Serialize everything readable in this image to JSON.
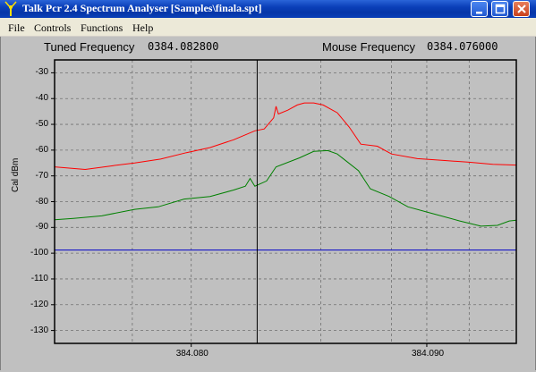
{
  "window": {
    "title": "Talk Pcr 2.4 Spectrum Analyser [Samples\\finala.spt]",
    "titlebar_color": "#0a3fb8",
    "buttons": [
      "minimize-icon",
      "maximize-icon",
      "close-icon"
    ]
  },
  "menu": {
    "items": [
      {
        "label": "File"
      },
      {
        "label": "Controls"
      },
      {
        "label": "Functions"
      },
      {
        "label": "Help"
      }
    ]
  },
  "info": {
    "tuned_label": "Tuned Frequency",
    "tuned_value": "0384.082800",
    "mouse_label": "Mouse Frequency",
    "mouse_value": "0384.076000"
  },
  "chart_data": {
    "type": "line",
    "xlim": [
      384.0742,
      384.0938
    ],
    "ylim": [
      -135,
      -25
    ],
    "ylabel": "Cal dBm",
    "xticks": [
      {
        "value": 384.08,
        "label": "384.080"
      },
      {
        "value": 384.09,
        "label": "384.090"
      }
    ],
    "yticks": [
      -30,
      -40,
      -50,
      -60,
      -70,
      -80,
      -90,
      -100,
      -110,
      -120,
      -130
    ],
    "grid": true,
    "plot_background": "#c0c0c0",
    "cursor_x": 384.0828,
    "reference_level": -98.8,
    "reference_color": "#0000c8",
    "series": [
      {
        "color": "#ff0000",
        "x": [
          384.0742,
          384.0755,
          384.0767,
          384.0776,
          384.0787,
          384.0798,
          384.0808,
          384.0818,
          384.0827,
          384.0831,
          384.0835,
          384.0836,
          384.0837,
          384.0841,
          384.0845,
          384.0848,
          384.0852,
          384.0856,
          384.0862,
          384.0867,
          384.0872,
          384.0879,
          384.0885,
          384.0896,
          384.0907,
          384.0918,
          384.0928,
          384.0938
        ],
        "y": [
          -66.5,
          -67.5,
          -66,
          -65,
          -63.5,
          -61,
          -59,
          -56,
          -52.5,
          -51.8,
          -47.5,
          -43,
          -46,
          -44.5,
          -42.5,
          -41.7,
          -41.7,
          -42.5,
          -45.5,
          -51,
          -57.7,
          -58.5,
          -61.5,
          -63.3,
          -64,
          -64.7,
          -65.5,
          -65.8
        ]
      },
      {
        "color": "#008000",
        "x": [
          384.0742,
          384.075,
          384.0762,
          384.0776,
          384.0786,
          384.0797,
          384.0808,
          384.0818,
          384.0823,
          384.0825,
          384.0827,
          384.0832,
          384.0836,
          384.0846,
          384.0852,
          384.0858,
          384.0862,
          384.0871,
          384.0876,
          384.0884,
          384.0892,
          384.0902,
          384.0914,
          384.0923,
          384.093,
          384.0935,
          384.0938
        ],
        "y": [
          -87,
          -86.5,
          -85.5,
          -83,
          -82,
          -79,
          -78,
          -75.5,
          -74,
          -71,
          -74,
          -72,
          -66.5,
          -63,
          -60.5,
          -60.2,
          -61.5,
          -68,
          -75,
          -78,
          -82,
          -84.5,
          -87.5,
          -89.5,
          -89.2,
          -87.5,
          -87.2
        ]
      }
    ]
  }
}
